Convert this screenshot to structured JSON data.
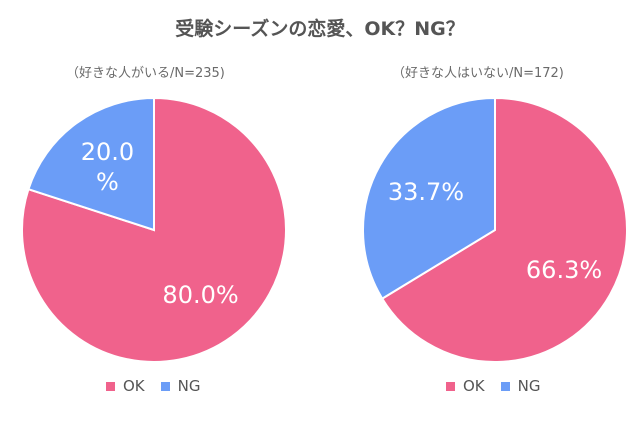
{
  "title": "受験シーズンの恋愛、OK？NG？",
  "colors": {
    "ok": "#f0628c",
    "ng": "#6b9df7",
    "text": "#555555"
  },
  "chart_data": [
    {
      "type": "pie",
      "subtitle": "（好きな人がいる/N=235)",
      "legend": [
        "OK",
        "NG"
      ],
      "slices": [
        {
          "label": "OK",
          "value": 80.0,
          "display": "80.0%"
        },
        {
          "label": "NG",
          "value": 20.0,
          "display": "20.0\n%"
        }
      ]
    },
    {
      "type": "pie",
      "subtitle": "（好きな人はいない/N=172)",
      "legend": [
        "OK",
        "NG"
      ],
      "slices": [
        {
          "label": "OK",
          "value": 66.3,
          "display": "66.3%"
        },
        {
          "label": "NG",
          "value": 33.7,
          "display": "33.7%"
        }
      ]
    }
  ]
}
